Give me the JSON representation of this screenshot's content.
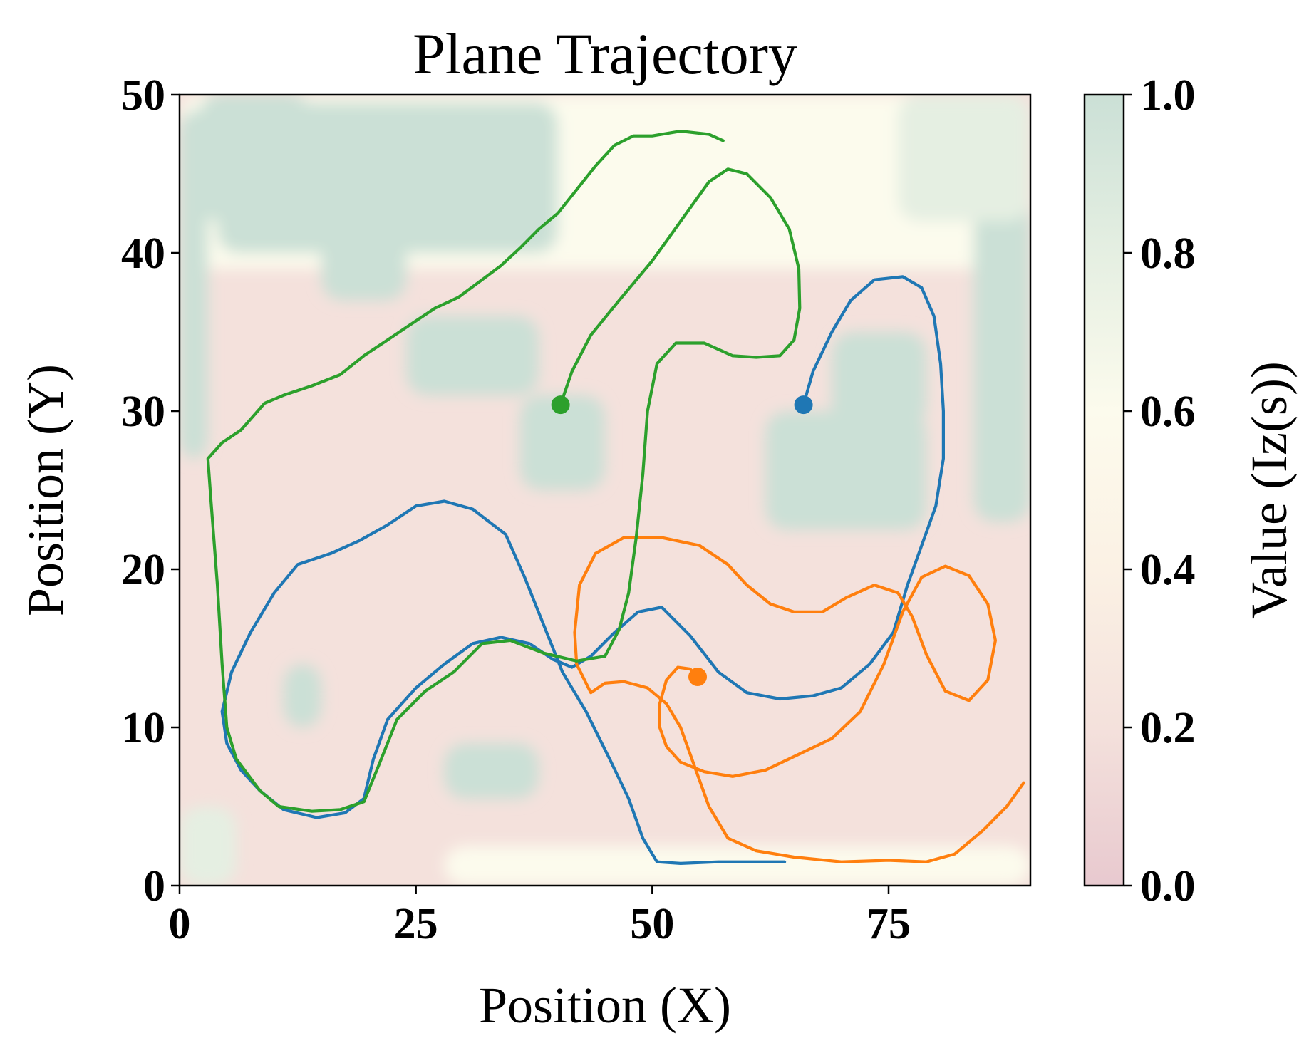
{
  "chart_data": {
    "type": "line",
    "title": "Plane Trajectory",
    "xlabel": "Position (X)",
    "ylabel": "Position (Y)",
    "xlim": [
      0,
      90
    ],
    "ylim": [
      0,
      50
    ],
    "xticks": [
      0,
      25,
      50,
      75
    ],
    "yticks": [
      0,
      10,
      20,
      30,
      40,
      50
    ],
    "grid": false,
    "colorbar": {
      "label": "Value (Iz(s))",
      "range": [
        0,
        1
      ],
      "ticks": [
        0.0,
        0.2,
        0.4,
        0.6,
        0.8,
        1.0
      ],
      "tick_labels": [
        "0.0",
        "0.2",
        "0.4",
        "0.6",
        "0.8",
        "1.0"
      ],
      "colors": [
        "#e8c9cf",
        "#f4e1dc",
        "#fbf1e4",
        "#fcfbed",
        "#e5efe2",
        "#cbe0d6"
      ]
    },
    "heatmap_description_note_free": true,
    "series": [
      {
        "color": "#1f77b4",
        "start": [
          66,
          30.4
        ],
        "points": [
          [
            66,
            30.4
          ],
          [
            67,
            32.5
          ],
          [
            69,
            35
          ],
          [
            71,
            37
          ],
          [
            73.5,
            38.3
          ],
          [
            76.5,
            38.5
          ],
          [
            78.5,
            37.8
          ],
          [
            79.8,
            36
          ],
          [
            80.5,
            33
          ],
          [
            80.8,
            30
          ],
          [
            80.8,
            27
          ],
          [
            80,
            24
          ],
          [
            78.5,
            21.5
          ],
          [
            77,
            19
          ],
          [
            75.5,
            16
          ],
          [
            73,
            14
          ],
          [
            70,
            12.5
          ],
          [
            67,
            12
          ],
          [
            63.5,
            11.8
          ],
          [
            60,
            12.2
          ],
          [
            57,
            13.5
          ],
          [
            54,
            15.8
          ],
          [
            51,
            17.6
          ],
          [
            48.5,
            17.3
          ],
          [
            46,
            16
          ],
          [
            43.5,
            14.5
          ],
          [
            41.5,
            13.8
          ],
          [
            39.5,
            14.3
          ],
          [
            37,
            15.3
          ],
          [
            34,
            15.7
          ],
          [
            31,
            15.3
          ],
          [
            28,
            14
          ],
          [
            25,
            12.5
          ],
          [
            22,
            10.5
          ],
          [
            20.5,
            8
          ],
          [
            19.5,
            5.5
          ],
          [
            17.5,
            4.6
          ],
          [
            14.5,
            4.3
          ],
          [
            11,
            4.8
          ],
          [
            8.5,
            6
          ],
          [
            6.5,
            7.3
          ],
          [
            5,
            9
          ],
          [
            4.5,
            11
          ],
          [
            5.5,
            13.5
          ],
          [
            7.5,
            16
          ],
          [
            10,
            18.5
          ],
          [
            12.5,
            20.3
          ],
          [
            16,
            21
          ],
          [
            19,
            21.8
          ],
          [
            22,
            22.8
          ],
          [
            25,
            24
          ],
          [
            28,
            24.3
          ],
          [
            31,
            23.8
          ],
          [
            34.5,
            22.2
          ],
          [
            36.5,
            19.5
          ],
          [
            38.5,
            16.5
          ],
          [
            40.5,
            13.5
          ],
          [
            43,
            11
          ],
          [
            45.5,
            8
          ],
          [
            47.5,
            5.5
          ],
          [
            49,
            3
          ],
          [
            50.5,
            1.5
          ],
          [
            53,
            1.4
          ],
          [
            57,
            1.5
          ],
          [
            61,
            1.5
          ],
          [
            64,
            1.5
          ]
        ]
      },
      {
        "color": "#ff7f0e",
        "start": [
          54.8,
          13.2
        ],
        "points": [
          [
            54.8,
            13.2
          ],
          [
            54,
            13.7
          ],
          [
            52.7,
            13.8
          ],
          [
            51.5,
            13
          ],
          [
            50.8,
            11.5
          ],
          [
            50.8,
            10
          ],
          [
            51.5,
            8.8
          ],
          [
            53,
            7.8
          ],
          [
            55.5,
            7.2
          ],
          [
            58.5,
            6.9
          ],
          [
            62,
            7.3
          ],
          [
            65.5,
            8.3
          ],
          [
            69,
            9.3
          ],
          [
            72,
            11
          ],
          [
            74.5,
            14
          ],
          [
            76.5,
            17.3
          ],
          [
            78.5,
            19.5
          ],
          [
            81,
            20.2
          ],
          [
            83.5,
            19.6
          ],
          [
            85.5,
            17.8
          ],
          [
            86.3,
            15.5
          ],
          [
            85.5,
            13
          ],
          [
            83.5,
            11.7
          ],
          [
            81,
            12.3
          ],
          [
            79,
            14.6
          ],
          [
            77.5,
            17
          ],
          [
            76,
            18.5
          ],
          [
            73.5,
            19
          ],
          [
            70.5,
            18.2
          ],
          [
            68,
            17.3
          ],
          [
            65,
            17.3
          ],
          [
            62.5,
            17.8
          ],
          [
            60,
            19
          ],
          [
            58,
            20.3
          ],
          [
            55,
            21.5
          ],
          [
            51,
            22
          ],
          [
            47,
            22
          ],
          [
            44,
            21
          ],
          [
            42.3,
            19
          ],
          [
            41.8,
            16
          ],
          [
            42,
            14
          ],
          [
            43.5,
            12.2
          ],
          [
            45,
            12.8
          ],
          [
            47,
            12.9
          ],
          [
            49.5,
            12.5
          ],
          [
            51.5,
            11.5
          ],
          [
            53,
            10
          ],
          [
            54.5,
            7.5
          ],
          [
            56,
            5
          ],
          [
            58,
            3
          ],
          [
            61,
            2.2
          ],
          [
            65,
            1.8
          ],
          [
            70,
            1.5
          ],
          [
            75,
            1.6
          ],
          [
            79,
            1.5
          ],
          [
            82,
            2
          ],
          [
            85,
            3.5
          ],
          [
            87.5,
            5
          ],
          [
            89.3,
            6.5
          ]
        ]
      },
      {
        "color": "#2ca02c",
        "start": [
          40.3,
          30.4
        ],
        "points": [
          [
            40.3,
            30.4
          ],
          [
            41.5,
            32.5
          ],
          [
            43.5,
            34.8
          ],
          [
            46.5,
            37
          ],
          [
            50,
            39.5
          ],
          [
            53,
            42
          ],
          [
            56,
            44.5
          ],
          [
            58,
            45.3
          ],
          [
            60,
            45
          ],
          [
            62.5,
            43.5
          ],
          [
            64.5,
            41.5
          ],
          [
            65.5,
            39
          ],
          [
            65.6,
            36.5
          ],
          [
            65,
            34.5
          ],
          [
            63.5,
            33.5
          ],
          [
            61,
            33.4
          ],
          [
            58.5,
            33.5
          ],
          [
            55.5,
            34.3
          ],
          [
            52.5,
            34.3
          ],
          [
            50.5,
            33
          ],
          [
            49.5,
            30
          ],
          [
            49,
            26
          ],
          [
            48.3,
            22
          ],
          [
            47.5,
            18.5
          ],
          [
            46.5,
            16.2
          ],
          [
            45,
            14.5
          ],
          [
            42,
            14.2
          ],
          [
            38.5,
            14.7
          ],
          [
            35,
            15.5
          ],
          [
            32,
            15.3
          ],
          [
            29,
            13.5
          ],
          [
            26,
            12.3
          ],
          [
            23,
            10.5
          ],
          [
            21,
            7.5
          ],
          [
            19.5,
            5.3
          ],
          [
            17,
            4.8
          ],
          [
            14,
            4.7
          ],
          [
            10.5,
            5
          ],
          [
            8.5,
            6
          ],
          [
            6,
            8
          ],
          [
            5,
            10
          ],
          [
            4.5,
            14
          ],
          [
            4,
            19
          ],
          [
            3.3,
            24.5
          ],
          [
            3,
            27
          ],
          [
            4.5,
            28
          ],
          [
            6.5,
            28.8
          ],
          [
            9,
            30.5
          ],
          [
            11,
            31
          ],
          [
            14,
            31.6
          ],
          [
            17,
            32.3
          ],
          [
            19.5,
            33.5
          ],
          [
            22,
            34.5
          ],
          [
            24.5,
            35.5
          ],
          [
            27,
            36.5
          ],
          [
            29.5,
            37.2
          ],
          [
            32,
            38.3
          ],
          [
            34,
            39.2
          ],
          [
            36,
            40.3
          ],
          [
            38,
            41.5
          ],
          [
            40,
            42.5
          ],
          [
            42,
            44
          ],
          [
            44,
            45.5
          ],
          [
            46,
            46.8
          ],
          [
            48,
            47.4
          ],
          [
            50,
            47.4
          ],
          [
            53,
            47.7
          ],
          [
            56,
            47.5
          ],
          [
            57.5,
            47.1
          ]
        ]
      }
    ]
  }
}
